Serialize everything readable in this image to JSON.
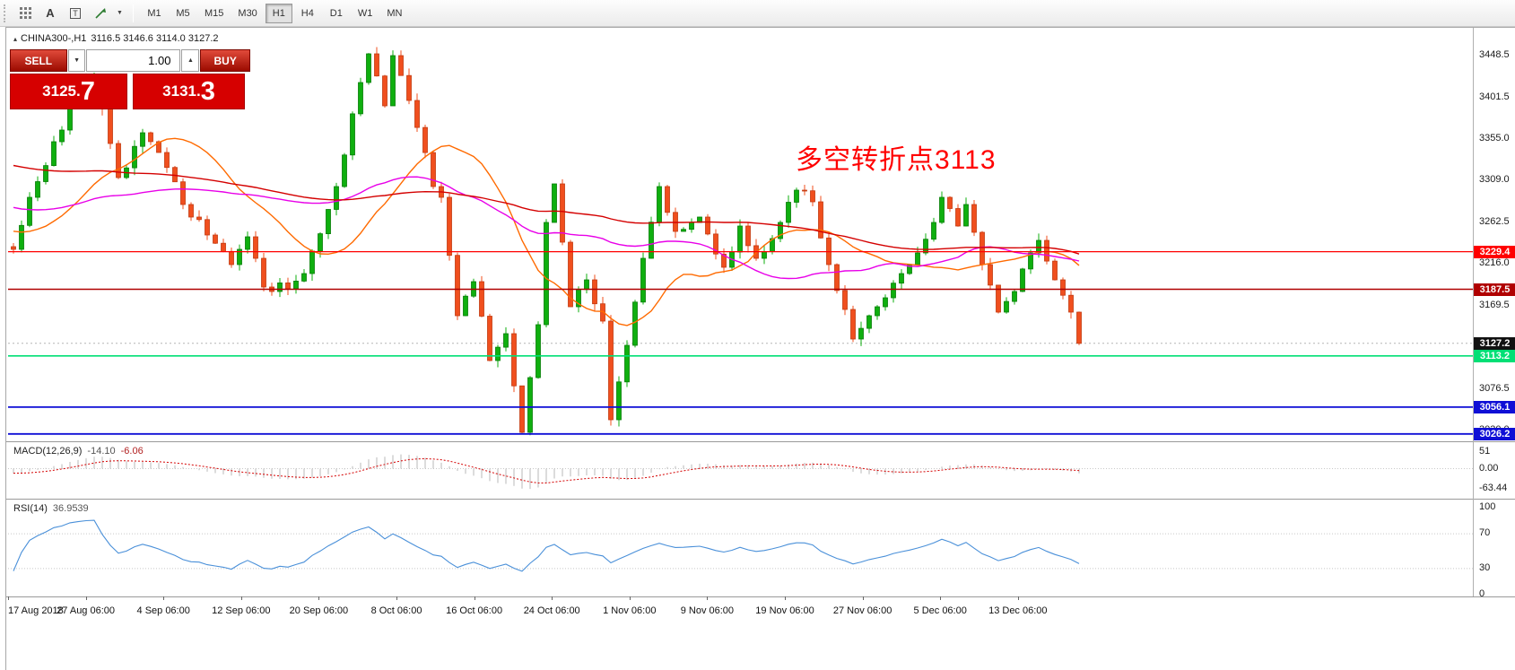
{
  "icons": {
    "collapse": "▴",
    "caret_down": "▼",
    "caret_up": "▲",
    "letter_a": "A",
    "letter_t": "T"
  },
  "toolbar": {
    "timeframes": [
      "M1",
      "M5",
      "M15",
      "M30",
      "H1",
      "H4",
      "D1",
      "W1",
      "MN"
    ],
    "active_timeframe": "H1"
  },
  "header": {
    "symbol": "CHINA300-,H1",
    "quote": "3116.5 3146.6 3114.0 3127.2"
  },
  "trade_panel": {
    "sell_label": "SELL",
    "buy_label": "BUY",
    "volume": "1.00",
    "sell_price_main": "3125.",
    "sell_price_big": "7",
    "buy_price_main": "3131.",
    "buy_price_big": "3"
  },
  "annotation": {
    "text": "多空转折点3113",
    "color": "#ff0000"
  },
  "chart_data": [
    {
      "type": "candlestick",
      "symbol": "CHINA300-",
      "timeframe": "H1",
      "ohlc": {
        "open": 3116.5,
        "high": 3146.6,
        "low": 3114.0,
        "close": 3127.2
      },
      "price_top": 3477,
      "price_bottom": 3017,
      "bar_count": 133,
      "y_axis_labels": [
        "3448.5",
        "3401.5",
        "3355.0",
        "3309.0",
        "3262.5",
        "3216.0",
        "3169.5",
        "3123.0",
        "3076.5",
        "3030.0"
      ],
      "x_axis_dates": [
        "17 Aug 2018",
        "27 Aug 06:00",
        "4 Sep 06:00",
        "12 Sep 06:00",
        "20 Sep 06:00",
        "8 Oct 06:00",
        "16 Oct 06:00",
        "24 Oct 06:00",
        "1 Nov 06:00",
        "9 Nov 06:00",
        "19 Nov 06:00",
        "27 Nov 06:00",
        "5 Dec 06:00",
        "13 Dec 06:00"
      ],
      "anchors": [
        [
          0,
          3232
        ],
        [
          2,
          3290
        ],
        [
          5,
          3352
        ],
        [
          8,
          3408
        ],
        [
          10,
          3425
        ],
        [
          12,
          3350
        ],
        [
          13,
          3312
        ],
        [
          16,
          3362
        ],
        [
          18,
          3340
        ],
        [
          21,
          3282
        ],
        [
          24,
          3248
        ],
        [
          27,
          3215
        ],
        [
          29,
          3246
        ],
        [
          31,
          3190
        ],
        [
          34,
          3188
        ],
        [
          36,
          3205
        ],
        [
          40,
          3302
        ],
        [
          43,
          3418
        ],
        [
          44,
          3450
        ],
        [
          46,
          3392
        ],
        [
          47,
          3448
        ],
        [
          49,
          3398
        ],
        [
          52,
          3302
        ],
        [
          53,
          3290
        ],
        [
          55,
          3158
        ],
        [
          57,
          3196
        ],
        [
          59,
          3108
        ],
        [
          61,
          3138
        ],
        [
          63,
          3028
        ],
        [
          65,
          3148
        ],
        [
          66,
          3262
        ],
        [
          67,
          3305
        ],
        [
          69,
          3168
        ],
        [
          71,
          3198
        ],
        [
          73,
          3152
        ],
        [
          74,
          3042
        ],
        [
          76,
          3125
        ],
        [
          78,
          3222
        ],
        [
          80,
          3302
        ],
        [
          82,
          3252
        ],
        [
          85,
          3268
        ],
        [
          88,
          3212
        ],
        [
          90,
          3258
        ],
        [
          92,
          3222
        ],
        [
          95,
          3262
        ],
        [
          97,
          3298
        ],
        [
          99,
          3285
        ],
        [
          101,
          3215
        ],
        [
          103,
          3165
        ],
        [
          104,
          3132
        ],
        [
          106,
          3158
        ],
        [
          108,
          3178
        ],
        [
          110,
          3205
        ],
        [
          112,
          3228
        ],
        [
          114,
          3262
        ],
        [
          115,
          3290
        ],
        [
          117,
          3258
        ],
        [
          118,
          3282
        ],
        [
          120,
          3215
        ],
        [
          122,
          3162
        ],
        [
          124,
          3185
        ],
        [
          126,
          3228
        ],
        [
          127,
          3242
        ],
        [
          129,
          3198
        ],
        [
          131,
          3162
        ],
        [
          132,
          3127.2
        ]
      ],
      "horizontal_lines": [
        {
          "price": 3229.4,
          "label": "3229.4",
          "color": "#ff0000",
          "width": 1.2
        },
        {
          "price": 3187.5,
          "label": "3187.5",
          "color": "#b00000",
          "width": 1.4
        },
        {
          "price": 3113.2,
          "label": "3113.2",
          "color": "#00df75",
          "width": 1.6
        },
        {
          "price": 3056.1,
          "label": "3056.1",
          "color": "#0f0fd6",
          "width": 1.8
        },
        {
          "price": 3026.2,
          "label": "3026.2",
          "color": "#0f0fd6",
          "width": 1.8
        }
      ],
      "current_price": {
        "value": 3127.2,
        "label": "3127.2",
        "tag_color": "#111111"
      },
      "moving_averages": [
        {
          "period": 18,
          "color": "#ff6a00"
        },
        {
          "period": 44,
          "color": "#e800e8"
        },
        {
          "period": 90,
          "color": "#d40000"
        }
      ],
      "candle_colors": {
        "up": "#0faf0f",
        "up_border": "#067d06",
        "down": "#f04f1e",
        "down_border": "#c23a10"
      }
    },
    {
      "type": "macd",
      "label": "MACD(12,26,9)",
      "main_value": "-14.10",
      "signal_value": "-6.06",
      "params": {
        "fast": 12,
        "slow": 26,
        "signal": 9
      },
      "y_axis_labels": [
        "51",
        "0.00",
        "-63.44"
      ],
      "y_max": 51,
      "y_min": -63.44,
      "histogram_color": "#b8b8b8",
      "signal_color": "#d40000"
    },
    {
      "type": "rsi",
      "label": "RSI(14)",
      "value": "36.9539",
      "period": 14,
      "y_axis_labels": [
        "100",
        "70",
        "30",
        "0"
      ],
      "levels": [
        70,
        30
      ],
      "line_color": "#4a90d9"
    }
  ]
}
